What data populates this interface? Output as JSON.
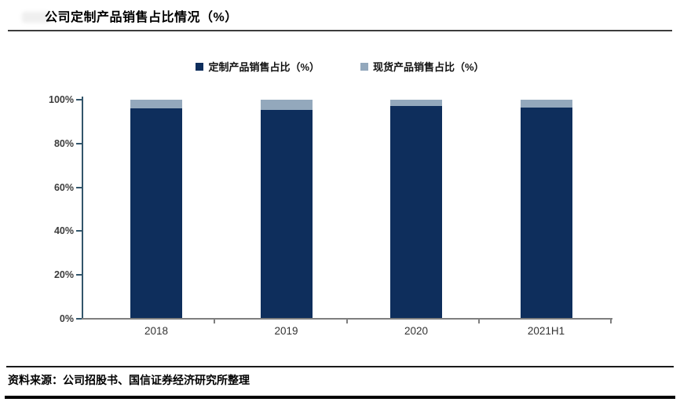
{
  "title": "公司定制产品销售占比情况（%）",
  "source": "资料来源：公司招股书、国信证券经济研究所整理",
  "colors": {
    "primary_series": "#0e2e5c",
    "secondary_series": "#93a8bc",
    "y_axis_line": "#33566b",
    "x_axis_line": "#7f7f7f"
  },
  "chart_data": {
    "type": "bar",
    "stacked": true,
    "title": "公司定制产品销售占比情况（%）",
    "categories": [
      "2018",
      "2019",
      "2020",
      "2021H1"
    ],
    "series": [
      {
        "name": "定制产品销售占比（%）",
        "color": "#0e2e5c",
        "values": [
          96,
          95.5,
          97,
          96.5
        ]
      },
      {
        "name": "现货产品销售占比（%）",
        "color": "#93a8bc",
        "values": [
          4,
          4.5,
          3,
          3.5
        ]
      }
    ],
    "xlabel": "",
    "ylabel": "",
    "ylim": [
      0,
      100
    ],
    "yticks": [
      "0%",
      "20%",
      "40%",
      "60%",
      "80%",
      "100%"
    ],
    "grid": false,
    "legend_position": "top"
  }
}
